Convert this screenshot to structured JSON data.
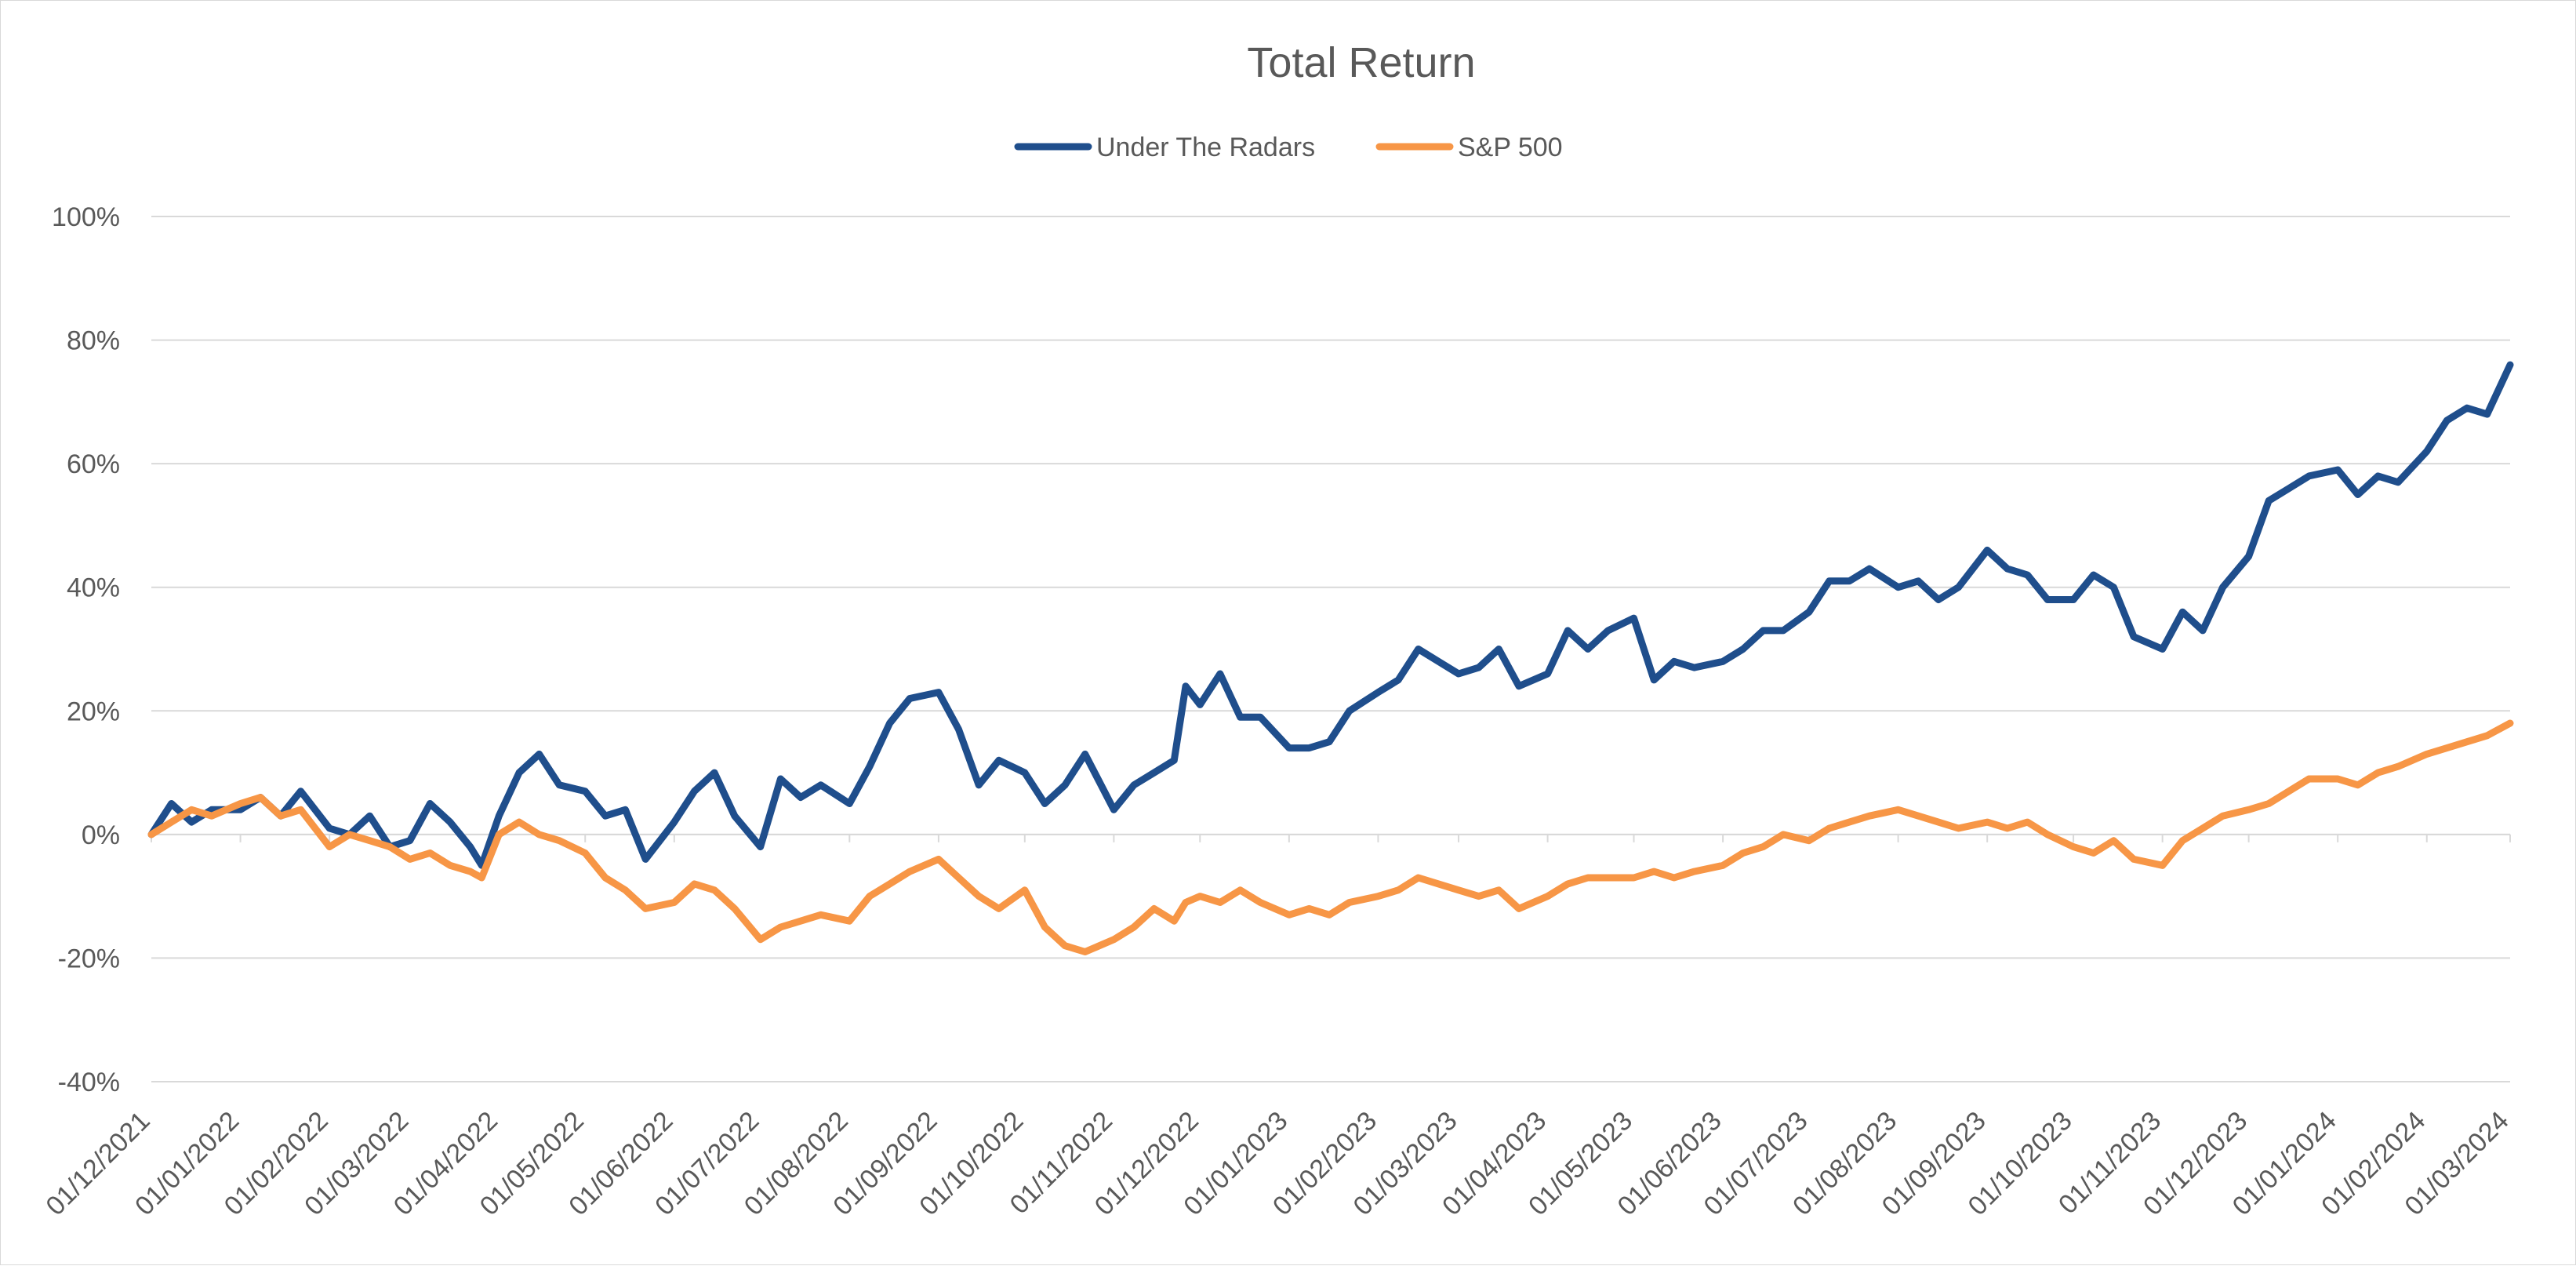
{
  "chart_data": {
    "type": "line",
    "title": "Total Return",
    "xlabel": "",
    "ylabel": "",
    "legend_position": "top-center",
    "grid": true,
    "ylim": [
      -40,
      100
    ],
    "y_unit": "%",
    "y_ticks": [
      "100%",
      "80%",
      "60%",
      "40%",
      "20%",
      "0%",
      "-20%",
      "-40%"
    ],
    "y_tick_values": [
      100,
      80,
      60,
      40,
      20,
      0,
      -20,
      -40
    ],
    "x_ticks": [
      "01/12/2021",
      "01/01/2022",
      "01/02/2022",
      "01/03/2022",
      "01/04/2022",
      "01/05/2022",
      "01/06/2022",
      "01/07/2022",
      "01/08/2022",
      "01/09/2022",
      "01/10/2022",
      "01/11/2022",
      "01/12/2022",
      "01/01/2023",
      "01/02/2023",
      "01/03/2023",
      "01/04/2023",
      "01/05/2023",
      "01/06/2023",
      "01/07/2023",
      "01/08/2023",
      "01/09/2023",
      "01/10/2023",
      "01/11/2023",
      "01/12/2023",
      "01/01/2024",
      "01/02/2024",
      "01/03/2024"
    ],
    "series": [
      {
        "name": "Under The Radars",
        "color": "#1f4e8c",
        "points": [
          [
            "01/12/2021",
            0
          ],
          [
            "08/12/2021",
            5
          ],
          [
            "15/12/2021",
            2
          ],
          [
            "22/12/2021",
            4
          ],
          [
            "01/01/2022",
            4
          ],
          [
            "08/01/2022",
            6
          ],
          [
            "15/01/2022",
            3
          ],
          [
            "22/01/2022",
            7
          ],
          [
            "01/02/2022",
            1
          ],
          [
            "08/02/2022",
            0
          ],
          [
            "15/02/2022",
            3
          ],
          [
            "22/02/2022",
            -2
          ],
          [
            "01/03/2022",
            -1
          ],
          [
            "08/03/2022",
            5
          ],
          [
            "15/03/2022",
            2
          ],
          [
            "22/03/2022",
            -2
          ],
          [
            "26/03/2022",
            -5
          ],
          [
            "01/04/2022",
            3
          ],
          [
            "08/04/2022",
            10
          ],
          [
            "15/04/2022",
            13
          ],
          [
            "22/04/2022",
            8
          ],
          [
            "01/05/2022",
            7
          ],
          [
            "08/05/2022",
            3
          ],
          [
            "15/05/2022",
            4
          ],
          [
            "22/05/2022",
            -4
          ],
          [
            "01/06/2022",
            2
          ],
          [
            "08/06/2022",
            7
          ],
          [
            "15/06/2022",
            10
          ],
          [
            "22/06/2022",
            3
          ],
          [
            "01/07/2022",
            -2
          ],
          [
            "08/07/2022",
            9
          ],
          [
            "15/07/2022",
            6
          ],
          [
            "22/07/2022",
            8
          ],
          [
            "01/08/2022",
            5
          ],
          [
            "08/08/2022",
            11
          ],
          [
            "15/08/2022",
            18
          ],
          [
            "22/08/2022",
            22
          ],
          [
            "01/09/2022",
            23
          ],
          [
            "08/09/2022",
            17
          ],
          [
            "15/09/2022",
            8
          ],
          [
            "22/09/2022",
            12
          ],
          [
            "01/10/2022",
            10
          ],
          [
            "08/10/2022",
            5
          ],
          [
            "15/10/2022",
            8
          ],
          [
            "22/10/2022",
            13
          ],
          [
            "01/11/2022",
            4
          ],
          [
            "08/11/2022",
            8
          ],
          [
            "15/11/2022",
            10
          ],
          [
            "22/11/2022",
            12
          ],
          [
            "26/11/2022",
            24
          ],
          [
            "01/12/2022",
            21
          ],
          [
            "08/12/2022",
            26
          ],
          [
            "15/12/2022",
            19
          ],
          [
            "22/12/2022",
            19
          ],
          [
            "01/01/2023",
            14
          ],
          [
            "08/01/2023",
            14
          ],
          [
            "15/01/2023",
            15
          ],
          [
            "22/01/2023",
            20
          ],
          [
            "01/02/2023",
            23
          ],
          [
            "08/02/2023",
            25
          ],
          [
            "15/02/2023",
            30
          ],
          [
            "22/02/2023",
            28
          ],
          [
            "01/03/2023",
            26
          ],
          [
            "08/03/2023",
            27
          ],
          [
            "15/03/2023",
            30
          ],
          [
            "22/03/2023",
            24
          ],
          [
            "01/04/2023",
            26
          ],
          [
            "08/04/2023",
            33
          ],
          [
            "15/04/2023",
            30
          ],
          [
            "22/04/2023",
            33
          ],
          [
            "01/05/2023",
            35
          ],
          [
            "08/05/2023",
            25
          ],
          [
            "15/05/2023",
            28
          ],
          [
            "22/05/2023",
            27
          ],
          [
            "01/06/2023",
            28
          ],
          [
            "08/06/2023",
            30
          ],
          [
            "15/06/2023",
            33
          ],
          [
            "22/06/2023",
            33
          ],
          [
            "01/07/2023",
            36
          ],
          [
            "08/07/2023",
            41
          ],
          [
            "15/07/2023",
            41
          ],
          [
            "22/07/2023",
            43
          ],
          [
            "01/08/2023",
            40
          ],
          [
            "08/08/2023",
            41
          ],
          [
            "15/08/2023",
            38
          ],
          [
            "22/08/2023",
            40
          ],
          [
            "01/09/2023",
            46
          ],
          [
            "08/09/2023",
            43
          ],
          [
            "15/09/2023",
            42
          ],
          [
            "22/09/2023",
            38
          ],
          [
            "01/10/2023",
            38
          ],
          [
            "08/10/2023",
            42
          ],
          [
            "15/10/2023",
            40
          ],
          [
            "22/10/2023",
            32
          ],
          [
            "01/11/2023",
            30
          ],
          [
            "08/11/2023",
            36
          ],
          [
            "15/11/2023",
            33
          ],
          [
            "22/11/2023",
            40
          ],
          [
            "01/12/2023",
            45
          ],
          [
            "08/12/2023",
            54
          ],
          [
            "15/12/2023",
            56
          ],
          [
            "22/12/2023",
            58
          ],
          [
            "01/01/2024",
            59
          ],
          [
            "08/01/2024",
            55
          ],
          [
            "15/01/2024",
            58
          ],
          [
            "22/01/2024",
            57
          ],
          [
            "01/02/2024",
            62
          ],
          [
            "08/02/2024",
            67
          ],
          [
            "15/02/2024",
            69
          ],
          [
            "22/02/2024",
            68
          ],
          [
            "01/03/2024",
            76
          ]
        ]
      },
      {
        "name": "S&P 500",
        "color": "#f79646",
        "points": [
          [
            "01/12/2021",
            0
          ],
          [
            "08/12/2021",
            2
          ],
          [
            "15/12/2021",
            4
          ],
          [
            "22/12/2021",
            3
          ],
          [
            "01/01/2022",
            5
          ],
          [
            "08/01/2022",
            6
          ],
          [
            "15/01/2022",
            3
          ],
          [
            "22/01/2022",
            4
          ],
          [
            "01/02/2022",
            -2
          ],
          [
            "08/02/2022",
            0
          ],
          [
            "15/02/2022",
            -1
          ],
          [
            "22/02/2022",
            -2
          ],
          [
            "01/03/2022",
            -4
          ],
          [
            "08/03/2022",
            -3
          ],
          [
            "15/03/2022",
            -5
          ],
          [
            "22/03/2022",
            -6
          ],
          [
            "26/03/2022",
            -7
          ],
          [
            "01/04/2022",
            0
          ],
          [
            "08/04/2022",
            2
          ],
          [
            "15/04/2022",
            0
          ],
          [
            "22/04/2022",
            -1
          ],
          [
            "01/05/2022",
            -3
          ],
          [
            "08/05/2022",
            -7
          ],
          [
            "15/05/2022",
            -9
          ],
          [
            "22/05/2022",
            -12
          ],
          [
            "01/06/2022",
            -11
          ],
          [
            "08/06/2022",
            -8
          ],
          [
            "15/06/2022",
            -9
          ],
          [
            "22/06/2022",
            -12
          ],
          [
            "01/07/2022",
            -17
          ],
          [
            "08/07/2022",
            -15
          ],
          [
            "15/07/2022",
            -14
          ],
          [
            "22/07/2022",
            -13
          ],
          [
            "01/08/2022",
            -14
          ],
          [
            "08/08/2022",
            -10
          ],
          [
            "15/08/2022",
            -8
          ],
          [
            "22/08/2022",
            -6
          ],
          [
            "01/09/2022",
            -4
          ],
          [
            "08/09/2022",
            -7
          ],
          [
            "15/09/2022",
            -10
          ],
          [
            "22/09/2022",
            -12
          ],
          [
            "01/10/2022",
            -9
          ],
          [
            "08/10/2022",
            -15
          ],
          [
            "15/10/2022",
            -18
          ],
          [
            "22/10/2022",
            -19
          ],
          [
            "01/11/2022",
            -17
          ],
          [
            "08/11/2022",
            -15
          ],
          [
            "15/11/2022",
            -12
          ],
          [
            "22/11/2022",
            -14
          ],
          [
            "26/11/2022",
            -11
          ],
          [
            "01/12/2022",
            -10
          ],
          [
            "08/12/2022",
            -11
          ],
          [
            "15/12/2022",
            -9
          ],
          [
            "22/12/2022",
            -11
          ],
          [
            "01/01/2023",
            -13
          ],
          [
            "08/01/2023",
            -12
          ],
          [
            "15/01/2023",
            -13
          ],
          [
            "22/01/2023",
            -11
          ],
          [
            "01/02/2023",
            -10
          ],
          [
            "08/02/2023",
            -9
          ],
          [
            "15/02/2023",
            -7
          ],
          [
            "22/02/2023",
            -8
          ],
          [
            "01/03/2023",
            -9
          ],
          [
            "08/03/2023",
            -10
          ],
          [
            "15/03/2023",
            -9
          ],
          [
            "22/03/2023",
            -12
          ],
          [
            "01/04/2023",
            -10
          ],
          [
            "08/04/2023",
            -8
          ],
          [
            "15/04/2023",
            -7
          ],
          [
            "22/04/2023",
            -7
          ],
          [
            "01/05/2023",
            -7
          ],
          [
            "08/05/2023",
            -6
          ],
          [
            "15/05/2023",
            -7
          ],
          [
            "22/05/2023",
            -6
          ],
          [
            "01/06/2023",
            -5
          ],
          [
            "08/06/2023",
            -3
          ],
          [
            "15/06/2023",
            -2
          ],
          [
            "22/06/2023",
            0
          ],
          [
            "01/07/2023",
            -1
          ],
          [
            "08/07/2023",
            1
          ],
          [
            "15/07/2023",
            2
          ],
          [
            "22/07/2023",
            3
          ],
          [
            "01/08/2023",
            4
          ],
          [
            "08/08/2023",
            3
          ],
          [
            "15/08/2023",
            2
          ],
          [
            "22/08/2023",
            1
          ],
          [
            "01/09/2023",
            2
          ],
          [
            "08/09/2023",
            1
          ],
          [
            "15/09/2023",
            2
          ],
          [
            "22/09/2023",
            0
          ],
          [
            "01/10/2023",
            -2
          ],
          [
            "08/10/2023",
            -3
          ],
          [
            "15/10/2023",
            -1
          ],
          [
            "22/10/2023",
            -4
          ],
          [
            "01/11/2023",
            -5
          ],
          [
            "08/11/2023",
            -1
          ],
          [
            "15/11/2023",
            1
          ],
          [
            "22/11/2023",
            3
          ],
          [
            "01/12/2023",
            4
          ],
          [
            "08/12/2023",
            5
          ],
          [
            "15/12/2023",
            7
          ],
          [
            "22/12/2023",
            9
          ],
          [
            "01/01/2024",
            9
          ],
          [
            "08/01/2024",
            8
          ],
          [
            "15/01/2024",
            10
          ],
          [
            "22/01/2024",
            11
          ],
          [
            "01/02/2024",
            13
          ],
          [
            "08/02/2024",
            14
          ],
          [
            "15/02/2024",
            15
          ],
          [
            "22/02/2024",
            16
          ],
          [
            "01/03/2024",
            18
          ]
        ]
      }
    ]
  }
}
